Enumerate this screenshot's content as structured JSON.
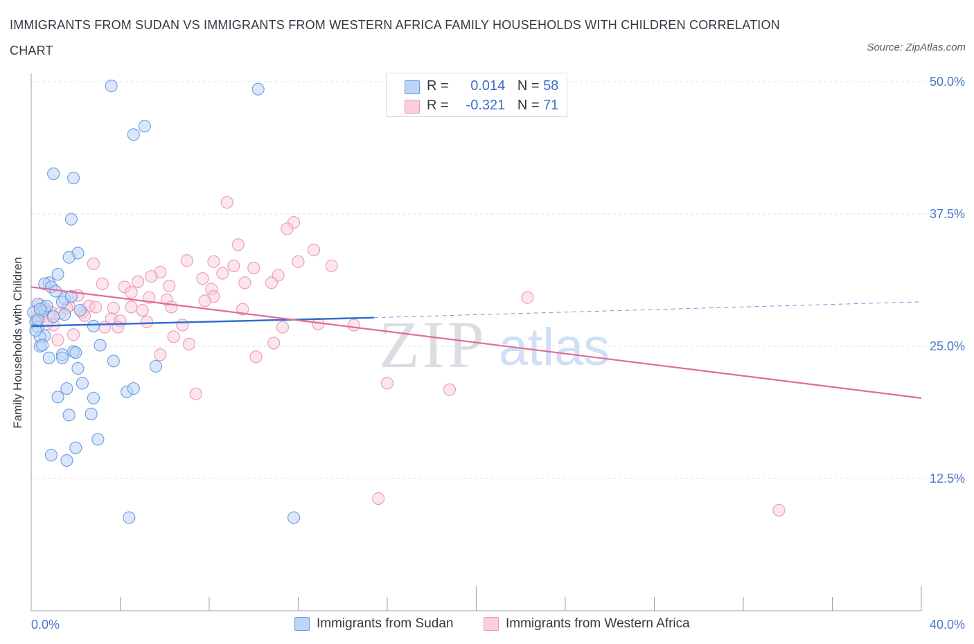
{
  "title": "IMMIGRANTS FROM SUDAN VS IMMIGRANTS FROM WESTERN AFRICA FAMILY HOUSEHOLDS WITH CHILDREN CORRELATION CHART",
  "source": "Source: ZipAtlas.com",
  "watermark": {
    "zip": "ZIP",
    "atlas": "atlas"
  },
  "colors": {
    "blue": "#6b9be0",
    "blue_fill": "#bcd4f5",
    "blue_line": "#2f6fcf",
    "pink": "#eb98b4",
    "pink_fill": "#f9cfdc",
    "pink_line": "#e36a96",
    "axis_label": "#4a78c7"
  },
  "legend": {
    "rows": [
      {
        "r_label": "R =",
        "r_value": "0.014",
        "n_label": "N =",
        "n_value": "58"
      },
      {
        "r_label": "R =",
        "r_value": "-0.321",
        "n_label": "N =",
        "n_value": "71"
      }
    ]
  },
  "chart_data": {
    "type": "scatter",
    "title": "IMMIGRANTS FROM SUDAN VS IMMIGRANTS FROM WESTERN AFRICA FAMILY HOUSEHOLDS WITH CHILDREN CORRELATION CHART",
    "xlabel": "",
    "ylabel": "Family Households with Children",
    "xlim": [
      0,
      40
    ],
    "ylim": [
      0,
      50
    ],
    "x_tick_labels": [
      "0.0%",
      "40.0%"
    ],
    "y_ticks": [
      12.5,
      25.0,
      37.5,
      50.0
    ],
    "y_tick_labels": [
      "12.5%",
      "25.0%",
      "37.5%",
      "50.0%"
    ],
    "grid": true,
    "legend_position": "bottom",
    "series": [
      {
        "name": "Immigrants from Sudan",
        "color": "#6b9be0",
        "r": 0.014,
        "n": 58,
        "trend": {
          "x": [
            0,
            15.4
          ],
          "y": [
            26.9,
            27.7
          ],
          "dashed_to": {
            "x": 40,
            "y": 29.2
          }
        },
        "points": [
          {
            "x": 3.6,
            "y": 49.6
          },
          {
            "x": 10.2,
            "y": 49.3
          },
          {
            "x": 5.1,
            "y": 45.8
          },
          {
            "x": 4.6,
            "y": 45.0
          },
          {
            "x": 1.0,
            "y": 41.3
          },
          {
            "x": 1.9,
            "y": 40.9
          },
          {
            "x": 1.8,
            "y": 37.0
          },
          {
            "x": 2.1,
            "y": 33.8
          },
          {
            "x": 1.7,
            "y": 33.4
          },
          {
            "x": 1.2,
            "y": 31.8
          },
          {
            "x": 0.8,
            "y": 31.0
          },
          {
            "x": 0.6,
            "y": 30.9
          },
          {
            "x": 0.9,
            "y": 30.6
          },
          {
            "x": 1.5,
            "y": 29.5
          },
          {
            "x": 1.4,
            "y": 29.2
          },
          {
            "x": 0.3,
            "y": 29.0
          },
          {
            "x": 0.6,
            "y": 28.6
          },
          {
            "x": 0.5,
            "y": 28.3
          },
          {
            "x": 1.5,
            "y": 28.0
          },
          {
            "x": 2.2,
            "y": 28.4
          },
          {
            "x": 0.1,
            "y": 28.2
          },
          {
            "x": 0.2,
            "y": 27.3
          },
          {
            "x": 0.3,
            "y": 26.8
          },
          {
            "x": 0.6,
            "y": 26.0
          },
          {
            "x": 0.4,
            "y": 25.9
          },
          {
            "x": 2.8,
            "y": 26.9
          },
          {
            "x": 0.4,
            "y": 25.0
          },
          {
            "x": 0.5,
            "y": 25.1
          },
          {
            "x": 3.1,
            "y": 25.1
          },
          {
            "x": 1.4,
            "y": 24.2
          },
          {
            "x": 1.9,
            "y": 24.5
          },
          {
            "x": 2.0,
            "y": 24.4
          },
          {
            "x": 0.8,
            "y": 23.9
          },
          {
            "x": 1.4,
            "y": 23.9
          },
          {
            "x": 3.7,
            "y": 23.6
          },
          {
            "x": 5.6,
            "y": 23.1
          },
          {
            "x": 2.1,
            "y": 22.9
          },
          {
            "x": 2.3,
            "y": 21.5
          },
          {
            "x": 1.6,
            "y": 21.0
          },
          {
            "x": 4.3,
            "y": 20.7
          },
          {
            "x": 4.6,
            "y": 21.0
          },
          {
            "x": 1.2,
            "y": 20.2
          },
          {
            "x": 2.8,
            "y": 20.1
          },
          {
            "x": 1.7,
            "y": 18.5
          },
          {
            "x": 2.7,
            "y": 18.6
          },
          {
            "x": 3.0,
            "y": 16.2
          },
          {
            "x": 2.0,
            "y": 15.4
          },
          {
            "x": 0.9,
            "y": 14.7
          },
          {
            "x": 1.6,
            "y": 14.2
          },
          {
            "x": 4.4,
            "y": 8.8
          },
          {
            "x": 11.8,
            "y": 8.8
          },
          {
            "x": 0.3,
            "y": 27.5
          },
          {
            "x": 0.2,
            "y": 26.5
          },
          {
            "x": 1.1,
            "y": 30.2
          },
          {
            "x": 1.8,
            "y": 29.7
          },
          {
            "x": 0.7,
            "y": 28.8
          },
          {
            "x": 0.4,
            "y": 28.5
          },
          {
            "x": 1.0,
            "y": 27.8
          }
        ]
      },
      {
        "name": "Immigrants from Western Africa",
        "color": "#eb98b4",
        "r": -0.321,
        "n": 71,
        "trend": {
          "x": [
            0,
            40
          ],
          "y": [
            30.6,
            20.1
          ]
        },
        "points": [
          {
            "x": 8.8,
            "y": 38.6
          },
          {
            "x": 11.8,
            "y": 36.7
          },
          {
            "x": 11.5,
            "y": 36.1
          },
          {
            "x": 9.3,
            "y": 34.6
          },
          {
            "x": 12.7,
            "y": 34.1
          },
          {
            "x": 12.0,
            "y": 33.0
          },
          {
            "x": 13.5,
            "y": 32.6
          },
          {
            "x": 7.0,
            "y": 33.1
          },
          {
            "x": 8.2,
            "y": 33.0
          },
          {
            "x": 9.1,
            "y": 32.6
          },
          {
            "x": 10.0,
            "y": 32.4
          },
          {
            "x": 2.8,
            "y": 32.8
          },
          {
            "x": 5.8,
            "y": 32.0
          },
          {
            "x": 8.6,
            "y": 31.9
          },
          {
            "x": 11.1,
            "y": 31.7
          },
          {
            "x": 7.7,
            "y": 31.4
          },
          {
            "x": 5.4,
            "y": 31.6
          },
          {
            "x": 4.8,
            "y": 31.1
          },
          {
            "x": 3.2,
            "y": 30.9
          },
          {
            "x": 6.2,
            "y": 30.7
          },
          {
            "x": 4.2,
            "y": 30.6
          },
          {
            "x": 8.1,
            "y": 30.4
          },
          {
            "x": 9.6,
            "y": 31.0
          },
          {
            "x": 10.8,
            "y": 31.0
          },
          {
            "x": 4.5,
            "y": 30.1
          },
          {
            "x": 2.1,
            "y": 29.8
          },
          {
            "x": 5.3,
            "y": 29.6
          },
          {
            "x": 8.2,
            "y": 29.7
          },
          {
            "x": 7.8,
            "y": 29.3
          },
          {
            "x": 6.1,
            "y": 29.4
          },
          {
            "x": 2.6,
            "y": 28.8
          },
          {
            "x": 2.9,
            "y": 28.7
          },
          {
            "x": 3.7,
            "y": 28.6
          },
          {
            "x": 4.5,
            "y": 28.7
          },
          {
            "x": 6.3,
            "y": 28.7
          },
          {
            "x": 9.5,
            "y": 28.5
          },
          {
            "x": 1.7,
            "y": 28.8
          },
          {
            "x": 0.9,
            "y": 28.2
          },
          {
            "x": 1.3,
            "y": 28.1
          },
          {
            "x": 2.3,
            "y": 28.2
          },
          {
            "x": 5.0,
            "y": 28.4
          },
          {
            "x": 0.5,
            "y": 27.8
          },
          {
            "x": 0.4,
            "y": 28.9
          },
          {
            "x": 3.6,
            "y": 27.6
          },
          {
            "x": 4.0,
            "y": 27.4
          },
          {
            "x": 5.2,
            "y": 27.3
          },
          {
            "x": 6.8,
            "y": 27.0
          },
          {
            "x": 1.0,
            "y": 27.0
          },
          {
            "x": 3.3,
            "y": 26.8
          },
          {
            "x": 3.9,
            "y": 26.8
          },
          {
            "x": 11.3,
            "y": 26.8
          },
          {
            "x": 12.9,
            "y": 27.1
          },
          {
            "x": 14.5,
            "y": 27.0
          },
          {
            "x": 0.7,
            "y": 27.1
          },
          {
            "x": 1.9,
            "y": 26.1
          },
          {
            "x": 6.4,
            "y": 25.9
          },
          {
            "x": 1.2,
            "y": 25.6
          },
          {
            "x": 7.1,
            "y": 25.2
          },
          {
            "x": 10.9,
            "y": 25.3
          },
          {
            "x": 5.8,
            "y": 24.2
          },
          {
            "x": 10.1,
            "y": 24.0
          },
          {
            "x": 22.3,
            "y": 29.6
          },
          {
            "x": 16.0,
            "y": 21.5
          },
          {
            "x": 18.8,
            "y": 20.9
          },
          {
            "x": 7.4,
            "y": 20.5
          },
          {
            "x": 15.6,
            "y": 10.6
          },
          {
            "x": 33.6,
            "y": 9.5
          },
          {
            "x": 0.3,
            "y": 27.9
          },
          {
            "x": 0.6,
            "y": 28.4
          },
          {
            "x": 2.4,
            "y": 27.9
          },
          {
            "x": 1.6,
            "y": 28.6
          }
        ]
      }
    ]
  }
}
